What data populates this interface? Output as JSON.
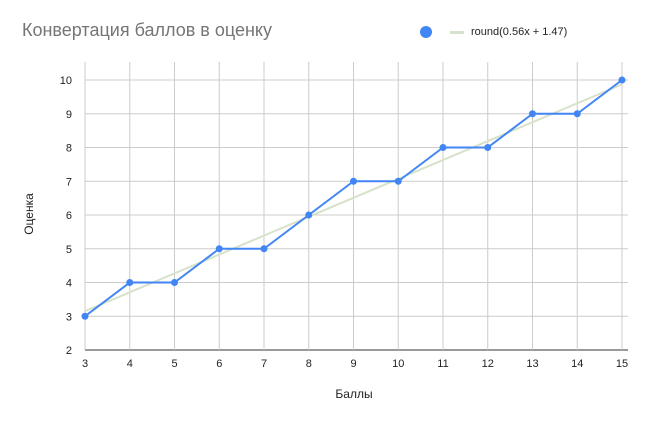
{
  "chart_data": {
    "type": "line",
    "title": "Конвертация баллов в оценку",
    "xlabel": "Баллы",
    "ylabel": "Оценка",
    "xlim": [
      3,
      15
    ],
    "ylim": [
      2,
      10
    ],
    "x_ticks": [
      3,
      4,
      5,
      6,
      7,
      8,
      9,
      10,
      11,
      12,
      13,
      14,
      15
    ],
    "y_ticks": [
      2,
      3,
      4,
      5,
      6,
      7,
      8,
      9,
      10
    ],
    "grid": true,
    "legend_position": "top-right",
    "x": [
      3,
      4,
      5,
      6,
      7,
      8,
      9,
      10,
      11,
      12,
      13,
      14,
      15
    ],
    "series": [
      {
        "values": [
          3,
          4,
          4,
          5,
          5,
          6,
          7,
          7,
          8,
          8,
          9,
          9,
          10
        ],
        "color": "#4285f4",
        "style": "line+markers"
      }
    ],
    "trendline": {
      "label": "round(0.56x + 1.47)",
      "slope": 0.56,
      "intercept": 1.47,
      "color": "#d6e2c9"
    }
  }
}
